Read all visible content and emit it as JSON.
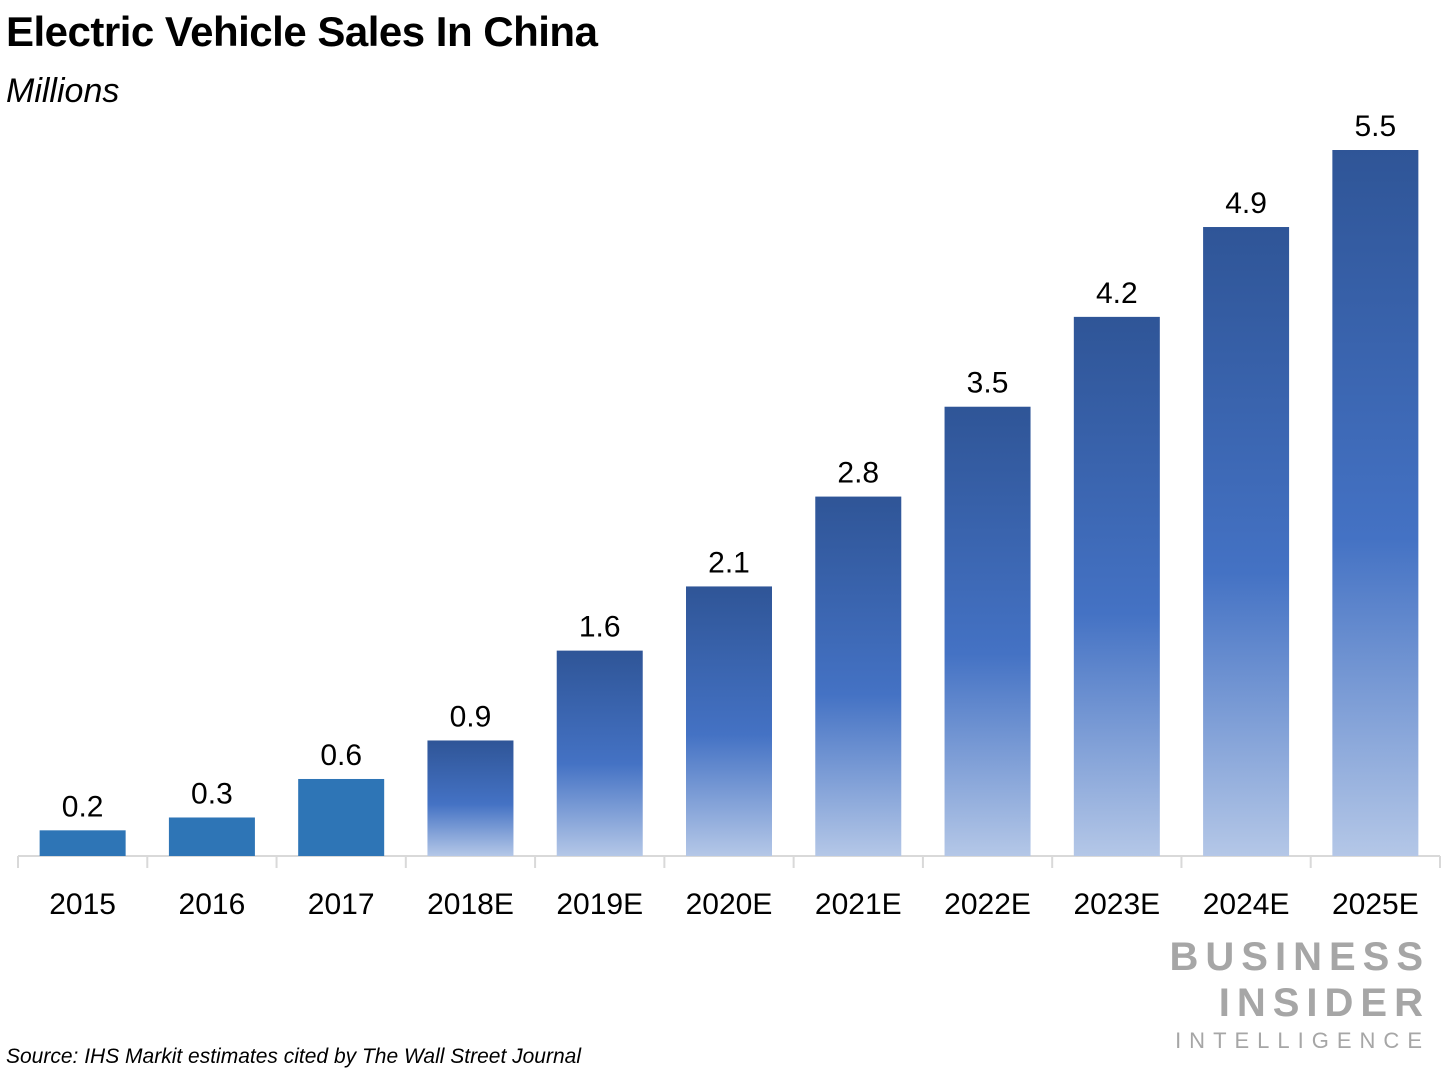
{
  "header": {
    "title": "Electric Vehicle Sales In China",
    "subtitle": "Millions"
  },
  "chart_data": {
    "type": "bar",
    "title": "Electric Vehicle Sales In China",
    "subtitle": "Millions",
    "xlabel": "",
    "ylabel": "",
    "categories": [
      "2015",
      "2016",
      "2017",
      "2018E",
      "2019E",
      "2020E",
      "2021E",
      "2022E",
      "2023E",
      "2024E",
      "2025E"
    ],
    "values": [
      0.2,
      0.3,
      0.6,
      0.9,
      1.6,
      2.1,
      2.8,
      3.5,
      4.2,
      4.9,
      5.5
    ],
    "data_labels": [
      "0.2",
      "0.3",
      "0.6",
      "0.9",
      "1.6",
      "2.1",
      "2.8",
      "3.5",
      "4.2",
      "4.9",
      "5.5"
    ],
    "ylim": [
      0,
      5.5
    ],
    "grid": false,
    "legend": "none",
    "colors": {
      "actual": "#2e75b6",
      "estimate_top": "#2f5597",
      "estimate_mid": "#4472c4",
      "estimate_bottom": "#b4c7e7",
      "axis": "#d9d9d9"
    }
  },
  "footer": {
    "source": "Source: IHS Markit estimates cited by The Wall Street Journal",
    "brand_line1": "BUSINESS",
    "brand_line2": "INSIDER",
    "brand_line3": "INTELLIGENCE"
  }
}
